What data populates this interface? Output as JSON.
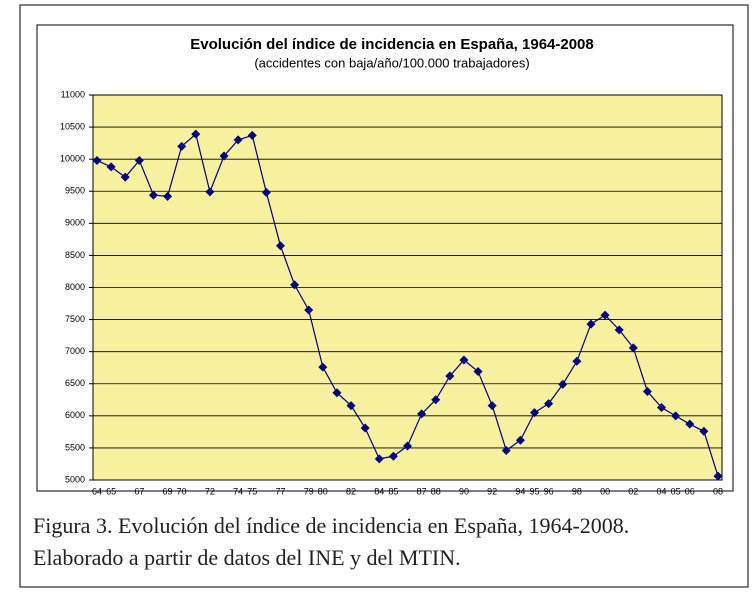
{
  "chart_data": {
    "type": "line",
    "title": "Evolución del índice de incidencia en España, 1964-2008",
    "subtitle": "(accidentes con baja/año/100.000 trabajadores)",
    "categories": [
      "64",
      "65",
      null,
      "67",
      null,
      "69",
      "70",
      null,
      "72",
      null,
      "74",
      "75",
      null,
      "77",
      null,
      "79",
      "80",
      null,
      "82",
      null,
      "84",
      "85",
      null,
      "87",
      "88",
      null,
      "90",
      null,
      "92",
      null,
      "94",
      "95",
      "96",
      null,
      "98",
      null,
      "00",
      null,
      "02",
      null,
      "04",
      "05",
      "06",
      null,
      "08"
    ],
    "values": [
      9980,
      9880,
      9720,
      9980,
      9440,
      9420,
      10200,
      10390,
      9490,
      10050,
      10300,
      10370,
      9480,
      8650,
      8040,
      7650,
      6760,
      6360,
      6160,
      5810,
      5330,
      5370,
      5530,
      6030,
      6250,
      6620,
      6870,
      6690,
      6160,
      5460,
      5620,
      6050,
      6190,
      6490,
      6850,
      7430,
      7570,
      7340,
      7060,
      6380,
      6130,
      6000,
      5870,
      5760,
      5060
    ],
    "color": "#000080",
    "ylim": [
      5000,
      11000
    ],
    "yticks": [
      5000,
      5500,
      6000,
      6500,
      7000,
      7500,
      8000,
      8500,
      9000,
      9500,
      10000,
      10500,
      11000
    ],
    "grid": true
  },
  "caption": [
    "Figura 3. Evolución del índice de incidencia en España, 1964-2008.",
    "Elaborado a partir de datos del INE y del MTIN."
  ]
}
